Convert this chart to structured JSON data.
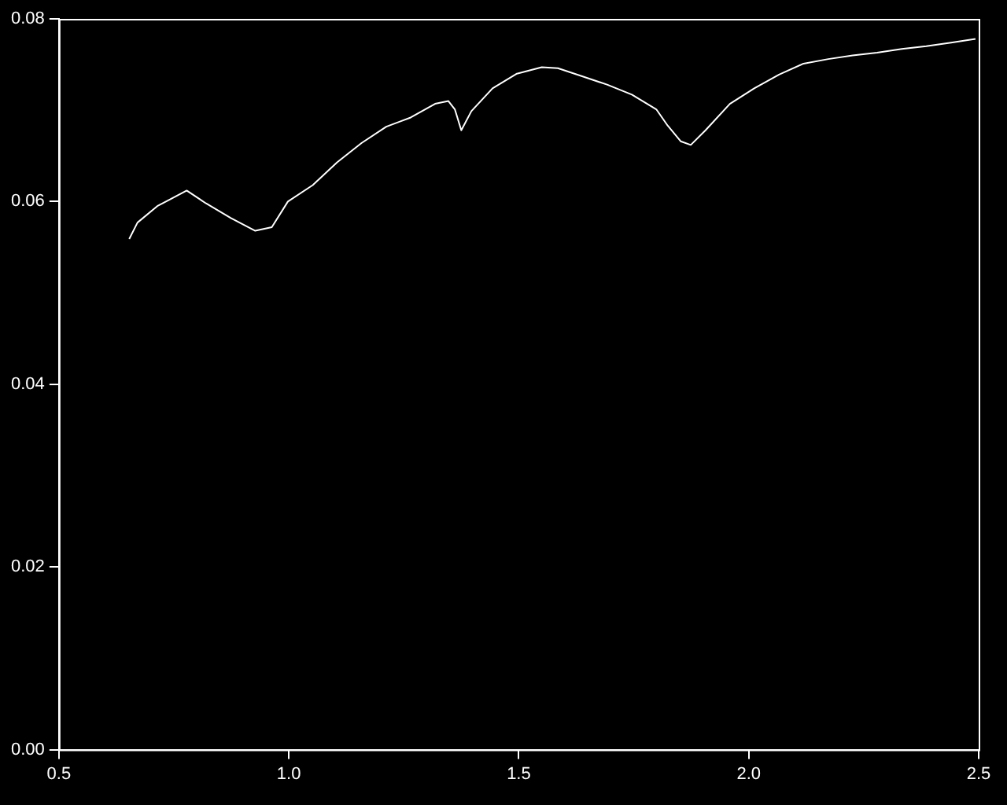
{
  "chart_data": {
    "type": "line",
    "x": [
      0.653,
      0.671,
      0.714,
      0.778,
      0.82,
      0.874,
      0.927,
      0.963,
      0.998,
      1.052,
      1.105,
      1.158,
      1.212,
      1.265,
      1.318,
      1.347,
      1.361,
      1.375,
      1.397,
      1.443,
      1.496,
      1.55,
      1.585,
      1.639,
      1.692,
      1.746,
      1.799,
      1.824,
      1.852,
      1.874,
      1.906,
      1.959,
      2.012,
      2.066,
      2.119,
      2.173,
      2.226,
      2.279,
      2.333,
      2.386,
      2.44,
      2.493
    ],
    "series": [
      {
        "color": "#ffffff",
        "values": [
          0.0559,
          0.0577,
          0.0595,
          0.0612,
          0.0598,
          0.0582,
          0.0568,
          0.0572,
          0.06,
          0.0618,
          0.0643,
          0.0664,
          0.0682,
          0.0692,
          0.0707,
          0.071,
          0.0701,
          0.0678,
          0.0699,
          0.0724,
          0.074,
          0.0747,
          0.0746,
          0.0737,
          0.0728,
          0.0717,
          0.0701,
          0.0683,
          0.0666,
          0.0662,
          0.0678,
          0.0707,
          0.0724,
          0.0739,
          0.0751,
          0.0756,
          0.076,
          0.0763,
          0.0767,
          0.077,
          0.0774,
          0.0778
        ]
      }
    ],
    "xlim": [
      0.5,
      2.5
    ],
    "xticks": [
      {
        "value": 0.5,
        "label": "0.5"
      },
      {
        "value": 1,
        "label": "1.0"
      },
      {
        "value": 1.5,
        "label": "1.5"
      },
      {
        "value": 2,
        "label": "2.0"
      },
      {
        "value": 2.5,
        "label": "2.5"
      }
    ],
    "ylim": [
      0,
      0.08
    ],
    "yticks": [
      {
        "value": 0,
        "label": "0.00"
      },
      {
        "value": 0.02,
        "label": "0.02"
      },
      {
        "value": 0.04,
        "label": "0.04"
      },
      {
        "value": 0.06,
        "label": "0.06"
      },
      {
        "value": 0.08,
        "label": "0.08"
      }
    ],
    "grid": false,
    "legend": false,
    "marker": "none",
    "line_style": "solid"
  }
}
